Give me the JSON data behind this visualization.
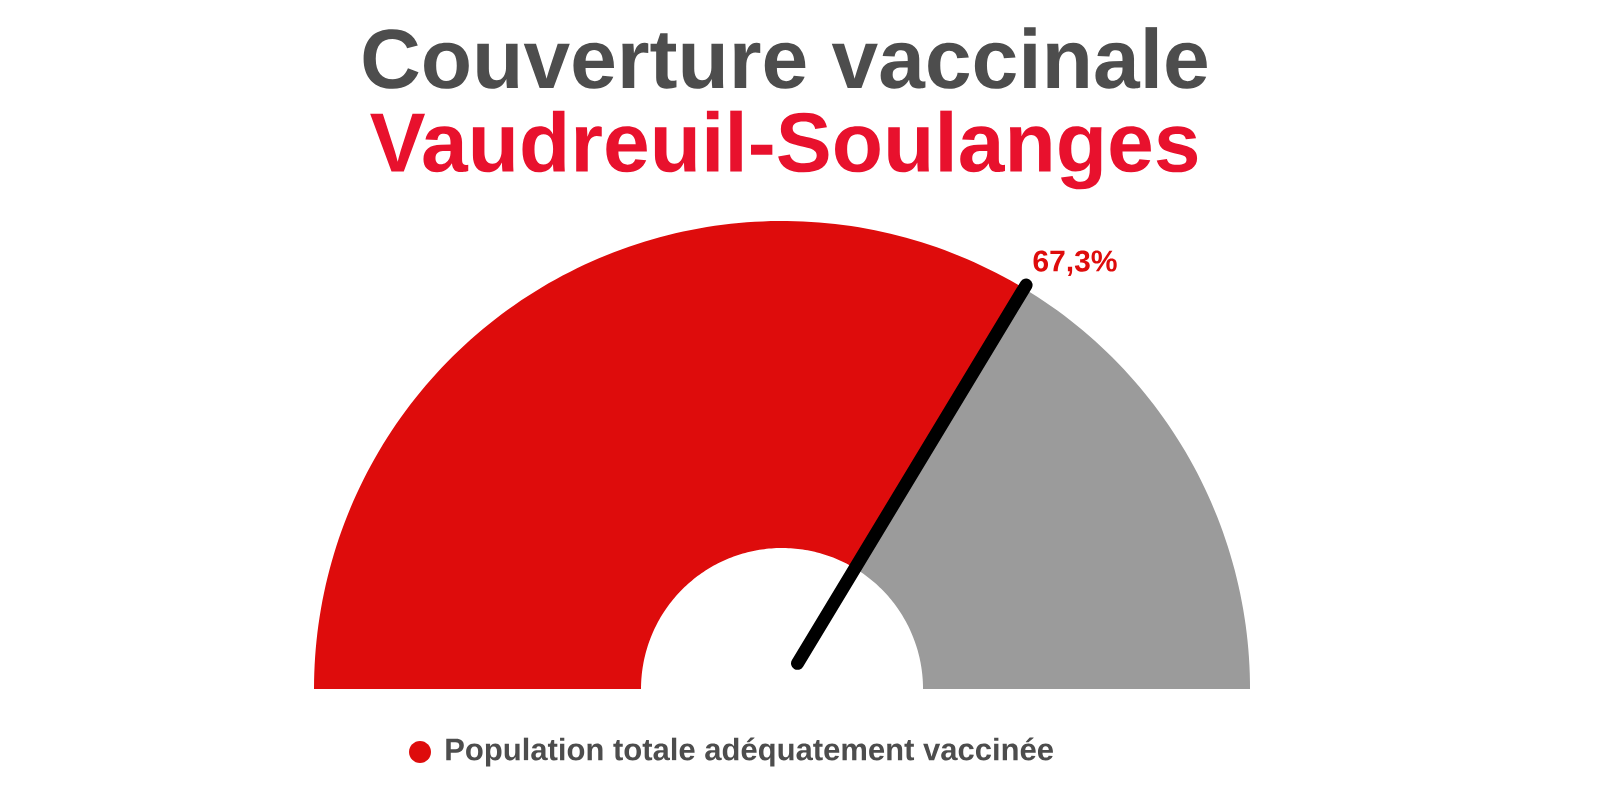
{
  "chart_data": {
    "type": "donut",
    "title": "Couverture vaccinale",
    "subtitle": "Vaudreuil-Soulanges",
    "categories": [
      "Population totale adéquatement vaccinée",
      null
    ],
    "values": [
      67.3,
      32.7
    ],
    "colors": [
      "#de0c0c",
      "#9b9b9b"
    ],
    "value_labels": [
      "67,3%",
      null
    ],
    "needle": "Population totale adéquatement vaccinée",
    "legend": "bottom"
  }
}
